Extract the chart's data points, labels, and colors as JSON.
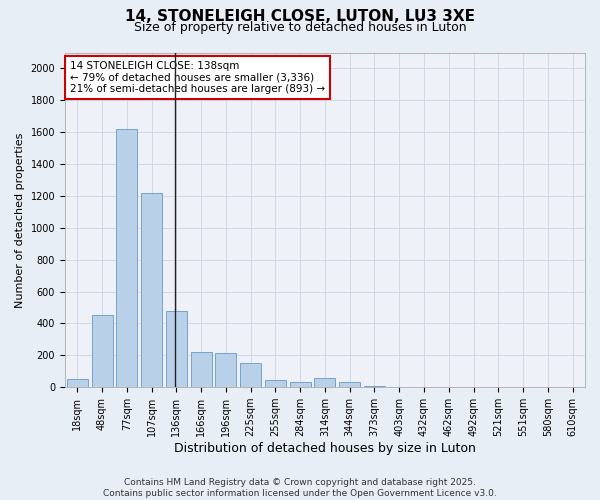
{
  "title1": "14, STONELEIGH CLOSE, LUTON, LU3 3XE",
  "title2": "Size of property relative to detached houses in Luton",
  "xlabel": "Distribution of detached houses by size in Luton",
  "ylabel": "Number of detached properties",
  "categories": [
    "18sqm",
    "48sqm",
    "77sqm",
    "107sqm",
    "136sqm",
    "166sqm",
    "196sqm",
    "225sqm",
    "255sqm",
    "284sqm",
    "314sqm",
    "344sqm",
    "373sqm",
    "403sqm",
    "432sqm",
    "462sqm",
    "492sqm",
    "521sqm",
    "551sqm",
    "580sqm",
    "610sqm"
  ],
  "values": [
    50,
    450,
    1620,
    1220,
    480,
    220,
    215,
    155,
    45,
    35,
    60,
    30,
    5,
    2,
    1,
    1,
    1,
    0,
    0,
    0,
    0
  ],
  "bar_color": "#b8d0e8",
  "bar_edge_color": "#6699cc",
  "vline_x_index": 4,
  "vline_color": "#222222",
  "annotation_text": "14 STONELEIGH CLOSE: 138sqm\n← 79% of detached houses are smaller (3,336)\n21% of semi-detached houses are larger (893) →",
  "annotation_box_facecolor": "#ffffff",
  "annotation_box_edgecolor": "#cc0000",
  "ylim": [
    0,
    2100
  ],
  "yticks": [
    0,
    200,
    400,
    600,
    800,
    1000,
    1200,
    1400,
    1600,
    1800,
    2000
  ],
  "footer1": "Contains HM Land Registry data © Crown copyright and database right 2025.",
  "footer2": "Contains public sector information licensed under the Open Government Licence v3.0.",
  "bg_color": "#e8eef5",
  "plot_bg_color": "#eef2f8",
  "title1_fontsize": 11,
  "title2_fontsize": 9,
  "xlabel_fontsize": 9,
  "ylabel_fontsize": 8,
  "tick_fontsize": 7,
  "annotation_fontsize": 7.5,
  "footer_fontsize": 6.5,
  "grid_color": "#c8d4e4"
}
